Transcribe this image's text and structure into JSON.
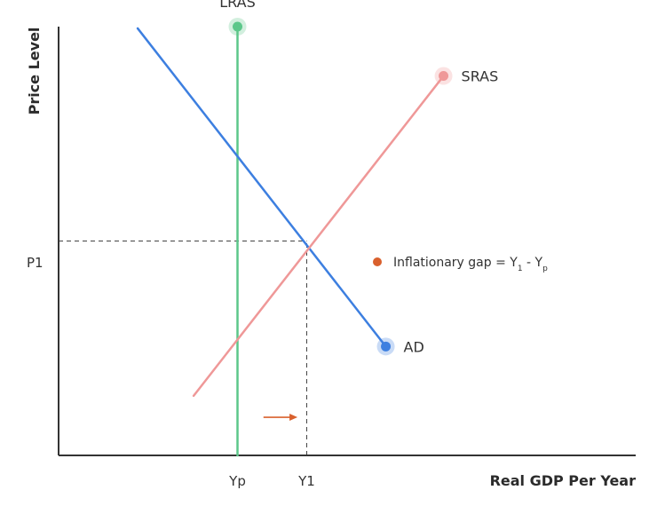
{
  "chart_data": {
    "type": "line",
    "title": "",
    "xlabel": "Real GDP Per Year",
    "ylabel": "Price Level",
    "xlim": [
      0,
      100
    ],
    "ylim": [
      0,
      100
    ],
    "grid": false,
    "x_ticks": [
      {
        "label": "Yp",
        "value": 31
      },
      {
        "label": "Y1",
        "value": 43
      }
    ],
    "y_ticks": [
      {
        "label": "P1",
        "value": 50
      }
    ],
    "series": [
      {
        "name": "LRAS",
        "color": "#5cc78a",
        "points": [
          [
            31,
            0
          ],
          [
            31,
            100
          ]
        ],
        "end_marker": [
          31,
          100
        ]
      },
      {
        "name": "AD",
        "color": "#3d7fe0",
        "points": [
          [
            13.7,
            99.6
          ],
          [
            56.7,
            25.4
          ]
        ],
        "end_marker": [
          56.7,
          25.4
        ]
      },
      {
        "name": "SRAS",
        "color": "#ef9898",
        "points": [
          [
            23.4,
            13.9
          ],
          [
            66.7,
            88.5
          ]
        ],
        "end_marker": [
          66.7,
          88.5
        ]
      }
    ],
    "guides": {
      "horizontal": {
        "from_x": 0,
        "to_x": 43,
        "y": 50
      },
      "vertical": {
        "x": 43,
        "from_y": 0,
        "to_y": 50
      }
    },
    "arrow": {
      "from": [
        35.5,
        8.9
      ],
      "to": [
        41.4,
        8.9
      ],
      "color": "#d9602d"
    },
    "legend": {
      "marker_color": "#d9602d",
      "text": "Inflationary gap = Y",
      "sub1": "1",
      "minus": " - Y",
      "sub2": "p"
    }
  }
}
